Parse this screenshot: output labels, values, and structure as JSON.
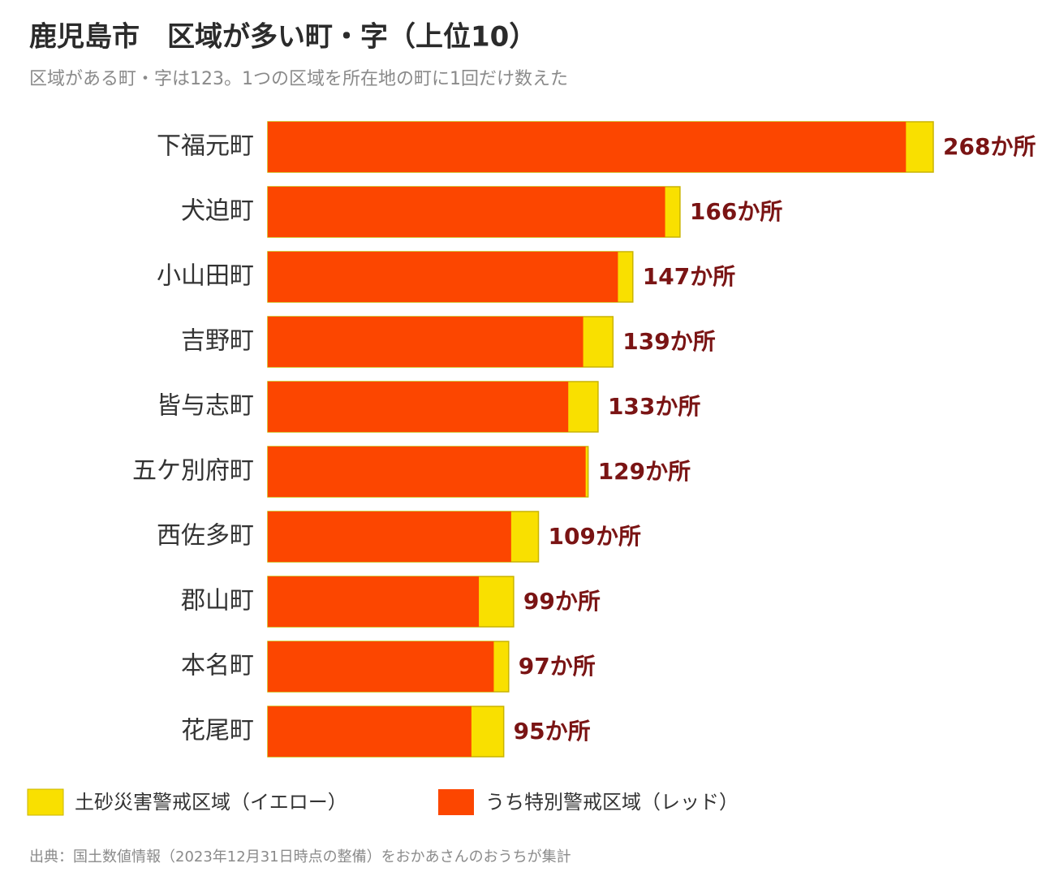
{
  "chart_data": {
    "type": "bar",
    "title": "鹿児島市　区域が多い町・字（上位10）",
    "subtitle": "区域がある町・字は123。1つの区域を所在地の町に1回だけ数えた",
    "source": "出典：国土数値情報（2023年12月31日時点の整備）をおかあさんのおうちが集計",
    "orientation": "horizontal",
    "categories": [
      "下福元町",
      "犬迫町",
      "小山田町",
      "吉野町",
      "皆与志町",
      "五ケ別府町",
      "西佐多町",
      "郡山町",
      "本名町",
      "花尾町"
    ],
    "xlim": [
      0,
      268
    ],
    "series": [
      {
        "name": "土砂災害警戒区域（イエロー）",
        "color": "#f9e000",
        "values": [
          268,
          166,
          147,
          139,
          133,
          129,
          109,
          99,
          97,
          95
        ],
        "value_labels": [
          "268か所",
          "166か所",
          "147か所",
          "139か所",
          "133か所",
          "129か所",
          "109か所",
          "99か所",
          "97か所",
          "95か所"
        ]
      },
      {
        "name": "うち特別警戒区域（レッド）",
        "color": "#fc4600",
        "values": [
          257,
          160,
          141,
          127,
          121,
          128,
          98,
          85,
          91,
          82
        ]
      }
    ]
  }
}
